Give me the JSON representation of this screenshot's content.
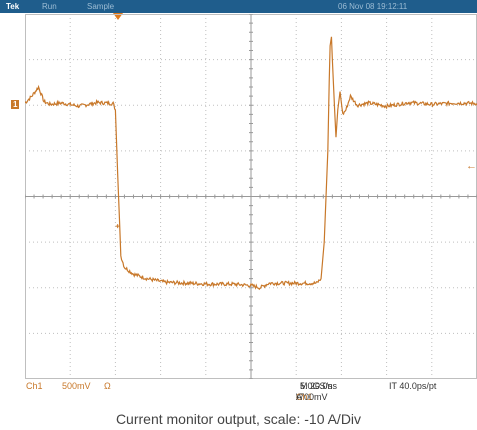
{
  "top_bar": {
    "brand": "Tek",
    "status_run": "Run",
    "status_sample": "Sample",
    "datetime": "06 Nov 08 19:12:11"
  },
  "channel_marker": "1",
  "status_bar": {
    "channel": "Ch1",
    "scale": "500mV",
    "coupling_symbol": "Ω",
    "time_per_div": "M 20.0ns",
    "sample_rate": "5.0GS/s",
    "interp": "IT 40.0ps/pt",
    "trigger_prefix": "A",
    "trigger_channel": "Ch1",
    "trigger_slope_symbol": "\\",
    "trigger_level": "-700mV"
  },
  "caption": "Current monitor output, scale: -10 A/Div",
  "colors": {
    "trace": "#c8782a",
    "grid": "#bfbfbf",
    "header_bg": "#1f5d8c"
  },
  "chart_data": {
    "type": "line",
    "title": "",
    "xlabel": "",
    "ylabel": "",
    "x_divisions": 10,
    "y_divisions": 8,
    "xlim": [
      0,
      10
    ],
    "ylim": [
      -4,
      4
    ],
    "grid": true,
    "series": [
      {
        "values": [
          [
            0.0,
            2.05
          ],
          [
            0.15,
            2.2
          ],
          [
            0.3,
            2.4
          ],
          [
            0.42,
            2.08
          ],
          [
            0.55,
            2.02
          ],
          [
            0.8,
            2.05
          ],
          [
            1.2,
            1.98
          ],
          [
            1.6,
            2.06
          ],
          [
            1.95,
            2.04
          ],
          [
            2.0,
            1.9
          ],
          [
            2.05,
            0.5
          ],
          [
            2.09,
            -0.5
          ],
          [
            2.12,
            -1.3
          ],
          [
            2.2,
            -1.55
          ],
          [
            2.4,
            -1.7
          ],
          [
            2.7,
            -1.8
          ],
          [
            3.1,
            -1.88
          ],
          [
            3.6,
            -1.9
          ],
          [
            4.1,
            -1.92
          ],
          [
            4.6,
            -1.92
          ],
          [
            5.0,
            -1.95
          ],
          [
            5.2,
            -2.0
          ],
          [
            5.4,
            -1.9
          ],
          [
            5.7,
            -1.9
          ],
          [
            6.1,
            -1.9
          ],
          [
            6.45,
            -1.9
          ],
          [
            6.55,
            -1.8
          ],
          [
            6.62,
            -1.0
          ],
          [
            6.66,
            0.0
          ],
          [
            6.7,
            1.0
          ],
          [
            6.73,
            2.5
          ],
          [
            6.75,
            3.3
          ],
          [
            6.78,
            3.5
          ],
          [
            6.8,
            3.0
          ],
          [
            6.85,
            1.9
          ],
          [
            6.88,
            1.3
          ],
          [
            6.92,
            1.9
          ],
          [
            6.97,
            2.3
          ],
          [
            7.03,
            1.8
          ],
          [
            7.1,
            1.9
          ],
          [
            7.2,
            2.2
          ],
          [
            7.35,
            2.0
          ],
          [
            7.6,
            2.05
          ],
          [
            8.0,
            1.98
          ],
          [
            8.5,
            2.06
          ],
          [
            9.0,
            2.02
          ],
          [
            9.5,
            2.05
          ],
          [
            10.0,
            2.04
          ]
        ]
      }
    ]
  }
}
